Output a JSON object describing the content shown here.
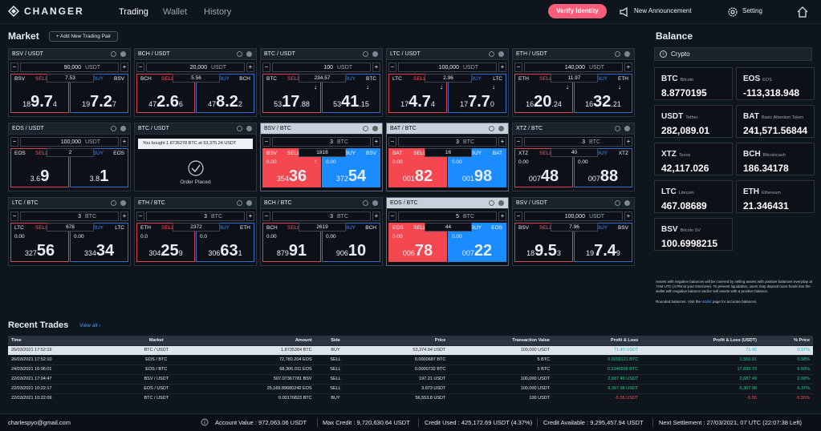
{
  "header": {
    "app_name": "CHANGER",
    "nav": [
      "Trading",
      "Wallet",
      "History"
    ],
    "verify_label": "Verify Identity",
    "announcement_label": "New Announcement",
    "setting_label": "Setting"
  },
  "market": {
    "title": "Market",
    "add_pair_label": "+ Add New Trading Pair"
  },
  "cards": [
    {
      "pair": "BSV / USDT",
      "qty": "90,000",
      "unit": "USDT",
      "base": "BSV",
      "sell_label": "SELL",
      "buy_label": "BUY",
      "spread": "7.53",
      "sell_pre": "18",
      "sell_big": "9.7",
      "sell_post": "4",
      "buy_pre": "19",
      "buy_big": "7.2",
      "buy_post": "7"
    },
    {
      "pair": "BCH / USDT",
      "qty": "20,000",
      "unit": "USDT",
      "base": "BCH",
      "sell_label": "SELL",
      "buy_label": "BUY",
      "spread": "5.56",
      "sell_pre": "47",
      "sell_big": "2.6",
      "sell_post": "6",
      "buy_pre": "47",
      "buy_big": "8.2",
      "buy_post": "2"
    },
    {
      "pair": "BTC / USDT",
      "qty": "100",
      "unit": "USDT",
      "base": "BTC",
      "sell_label": "SELL",
      "buy_label": "BUY",
      "spread": "234.57",
      "sell_pre": "53",
      "sell_big": "17",
      "sell_post": ".88",
      "buy_pre": "53",
      "buy_big": "41",
      "buy_post": ".15",
      "sell_arrow": "↓",
      "buy_arrow": "↓"
    },
    {
      "pair": "LTC / USDT",
      "qty": "100,000",
      "unit": "USDT",
      "base": "LTC",
      "sell_label": "SELL",
      "buy_label": "BUY",
      "spread": "2.96",
      "sell_pre": "17",
      "sell_big": "4.7",
      "sell_post": "4",
      "buy_pre": "17",
      "buy_big": "7.7",
      "buy_post": "0",
      "sell_arrow": "↓",
      "buy_arrow": "↓"
    },
    {
      "pair": "ETH / USDT",
      "qty": "140,000",
      "unit": "USDT",
      "base": "ETH",
      "sell_label": "SELL",
      "buy_label": "BUY",
      "spread": "11.97",
      "sell_pre": "16",
      "sell_big": "20",
      "sell_post": ".24",
      "buy_pre": "16",
      "buy_big": "32",
      "buy_post": ".21",
      "sell_arrow": "↓",
      "buy_arrow": "↓"
    },
    {
      "pair": "EOS / USDT",
      "qty": "100,000",
      "unit": "USDT",
      "base": "EOS",
      "sell_label": "SELL",
      "buy_label": "BUY",
      "spread": "2",
      "sell_pre": "3.6",
      "sell_big": "9",
      "sell_post": "",
      "buy_pre": "3.8",
      "buy_big": "1",
      "buy_post": ""
    },
    {
      "pair": "BTC / USDT",
      "order_msg": "You bought 1.8735278 BTC at 53,375.24 USDT",
      "order_placed": "Order Placed"
    },
    {
      "pair": "BSV / BTC",
      "qty": "3",
      "unit": "BTC",
      "base": "BSV",
      "sell_label": "SELL",
      "buy_label": "BUY",
      "spread": "1818",
      "zero": "0.00",
      "sell_pre": "354",
      "sell_big": "36",
      "sell_post": "",
      "buy_pre": "372",
      "buy_big": "54",
      "buy_post": "",
      "sell_arrow": "↑"
    },
    {
      "pair": "BAT / BTC",
      "qty": "3",
      "unit": "BTC",
      "base": "BAT",
      "sell_label": "SELL",
      "buy_label": "BUY",
      "spread": "16",
      "zero": "0.00",
      "sell_pre": "001",
      "sell_big": "82",
      "sell_post": "",
      "buy_pre": "001",
      "buy_big": "98",
      "buy_post": ""
    },
    {
      "pair": "XTZ / BTC",
      "qty": "3",
      "unit": "BTC",
      "base": "XTZ",
      "sell_label": "SELL",
      "buy_label": "BUY",
      "spread": "40",
      "zero": "0.00",
      "sell_pre": "007",
      "sell_big": "48",
      "sell_post": "",
      "buy_pre": "007",
      "buy_big": "88",
      "buy_post": ""
    },
    {
      "pair": "LTC / BTC",
      "qty": "3",
      "unit": "BTC",
      "base": "LTC",
      "sell_label": "SELL",
      "buy_label": "BUY",
      "spread": "678",
      "zero": "0.00",
      "sell_pre": "327",
      "sell_big": "56",
      "sell_post": "",
      "buy_pre": "334",
      "buy_big": "34",
      "buy_post": ""
    },
    {
      "pair": "ETH / BTC",
      "qty": "3",
      "unit": "BTC",
      "base": "ETH",
      "sell_label": "SELL",
      "buy_label": "BUY",
      "spread": "2372",
      "zero": "0.0",
      "sell_pre": "304",
      "sell_big": "25",
      "sell_post": "9",
      "buy_pre": "306",
      "buy_big": "63",
      "buy_post": "1"
    },
    {
      "pair": "BCH / BTC",
      "qty": "3",
      "unit": "BTC",
      "base": "BCH",
      "sell_label": "SELL",
      "buy_label": "BUY",
      "spread": "2619",
      "zero": "0.00",
      "sell_pre": "879",
      "sell_big": "91",
      "sell_post": "",
      "buy_pre": "906",
      "buy_big": "10",
      "buy_post": ""
    },
    {
      "pair": "EOS / BTC",
      "qty": "5",
      "unit": "BTC",
      "base": "EOS",
      "sell_label": "SELL",
      "buy_label": "BUY",
      "spread": "44",
      "zero": "0.00",
      "sell_pre": "006",
      "sell_big": "78",
      "sell_post": "",
      "buy_pre": "007",
      "buy_big": "22",
      "buy_post": ""
    },
    {
      "pair": "BSV / USDT",
      "qty": "100,000",
      "unit": "USDT",
      "base": "BSV",
      "sell_label": "SELL",
      "buy_label": "BUY",
      "spread": "7.96",
      "sell_pre": "18",
      "sell_big": "9.5",
      "sell_post": "3",
      "buy_pre": "19",
      "buy_big": "7.4",
      "buy_post": "9"
    }
  ],
  "balance": {
    "title": "Balance",
    "crypto_label": "Crypto",
    "items": [
      {
        "sym": "BTC",
        "name": "Bitcoin",
        "amount": "8.8770195"
      },
      {
        "sym": "EOS",
        "name": "EOS",
        "amount": "-113,318.948"
      },
      {
        "sym": "USDT",
        "name": "Tether",
        "amount": "282,089.01"
      },
      {
        "sym": "BAT",
        "name": "Basic Attention Token",
        "amount": "241,571.56844"
      },
      {
        "sym": "XTZ",
        "name": "Tezos",
        "amount": "42,117.026"
      },
      {
        "sym": "BCH",
        "name": "Bitcoincash",
        "amount": "186.34178"
      },
      {
        "sym": "LTC",
        "name": "Litecoin",
        "amount": "467.08689"
      },
      {
        "sym": "ETH",
        "name": "Ethereum",
        "amount": "21.346431"
      },
      {
        "sym": "BSV",
        "name": "Bitcoin SV",
        "amount": "100.6998215"
      }
    ],
    "note": "Assets with negative balances will be covered by selling assets with positive balances everyday at 7AM UTC (4 PM at your timezone). To prevent liquidation, users may deposit more funds into the wallet with negative balance and/or sell assets with a positive balance.",
    "note2_pre": "Rounded balances. Visit the",
    "note2_link": "Wallet",
    "note2_post": "page for accurate balances."
  },
  "trades": {
    "title": "Recent Trades",
    "view_all": "View all ›",
    "columns": [
      "Time",
      "Market",
      "Amount",
      "Side",
      "Price",
      "Transaction Value",
      "Profit & Loss",
      "Profit & Loss (USDT)",
      "% Price"
    ],
    "rows": [
      [
        "26/03/2021 17:52:19",
        "BTC / USDT",
        "1.8735384 BTC",
        "BUY",
        "53,374.94 USDT",
        "100,000 USDT",
        "71.40 USDT",
        "71.40",
        "0.07%"
      ],
      [
        "26/03/2021 17:52:10",
        "EOS / BTC",
        "72,780.204 EOS",
        "SELL",
        "0.0000687 BTC",
        "5 BTC",
        "0.0291121 BTC",
        "1,550.91",
        "0.58%"
      ],
      [
        "24/03/2021 16:06:01",
        "EOS / BTC",
        "68,306.011 EOS",
        "SELL",
        "0.0000732 BTC",
        "5 BTC",
        "0.3346995 BTC",
        "17,830.73",
        "6.69%"
      ],
      [
        "22/03/2021 17:04:47",
        "BSV / USDT",
        "507.07367781 BSV",
        "SELL",
        "197.21 USDT",
        "100,000 USDT",
        "2,687.49 USDT",
        "2,687.49",
        "2.69%"
      ],
      [
        "22/03/2021 10:22:17",
        "EOS / USDT",
        "25,169.89680242 EOS",
        "SELL",
        "3.973 USDT",
        "100,000 USDT",
        "6,367.98 USDT",
        "6,367.98",
        "6.37%"
      ],
      [
        "22/03/2021 10:22:09",
        "BTC / USDT",
        "0.00176823 BTC",
        "BUY",
        "56,553.8 USDT",
        "100 USDT",
        "-5.55 USDT",
        "-5.55",
        "-5.55%"
      ]
    ],
    "signs": [
      "pos",
      "pos",
      "pos",
      "pos",
      "pos",
      "neg"
    ]
  },
  "status": {
    "email": "charlespyo@gmail.com",
    "account_value": "Account Value : 972,063.06 USDT",
    "max_credit": "Max Credit : 9,720,630.64 USDT",
    "credit_used": "Credit Used : 425,172.69 USDT (4.37%)",
    "credit_available": "Credit Available : 9,295,457.94 USDT",
    "next_settlement": "Next Settlement : 27/03/2021, 07 UTC (22:07:38 Left)"
  }
}
